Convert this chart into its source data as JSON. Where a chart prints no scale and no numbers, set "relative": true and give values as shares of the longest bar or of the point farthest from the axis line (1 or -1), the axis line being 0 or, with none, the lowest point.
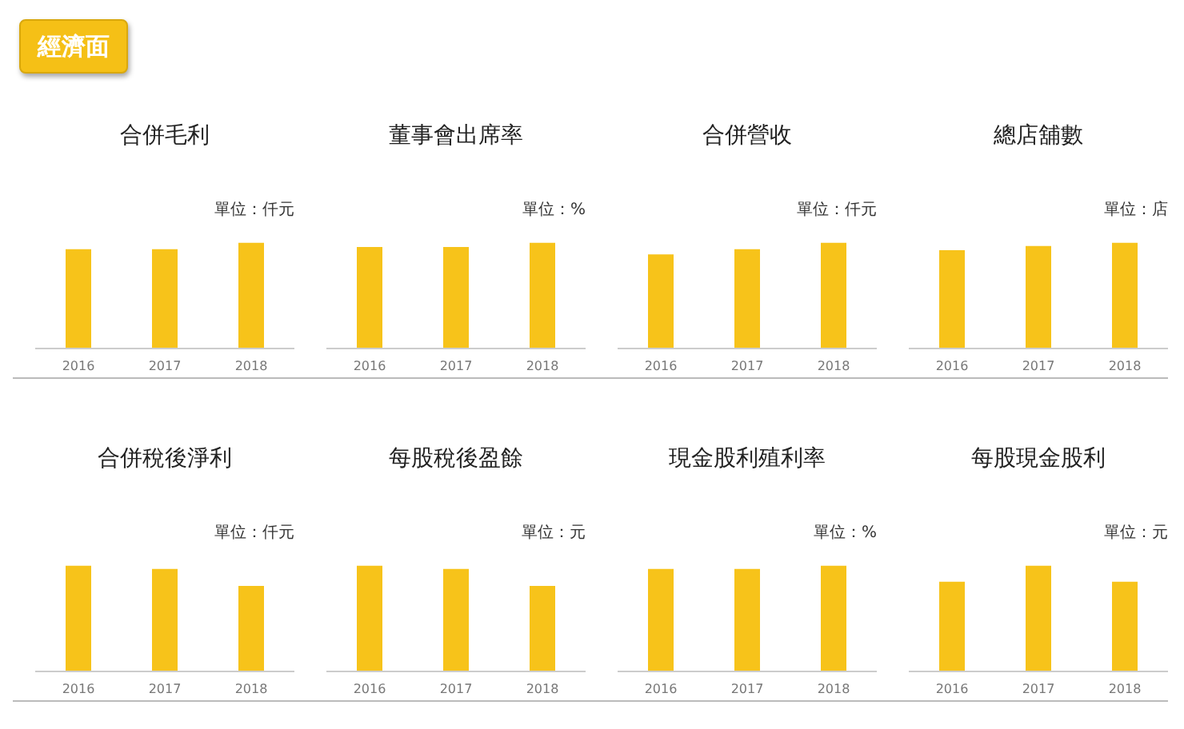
{
  "chart_data": [
    {
      "type": "other",
      "title": "經濟面"
    },
    {
      "type": "bar",
      "title": "合併毛利",
      "annotations": [
        "單位：仟元"
      ],
      "categories": [
        "2016",
        "2017",
        "2018"
      ],
      "values": [
        0.94,
        0.94,
        1
      ],
      "color": "#f7c31a",
      "relative": true
    },
    {
      "type": "bar",
      "title": "董事會出席率",
      "annotations": [
        "單位：%"
      ],
      "categories": [
        "2016",
        "2017",
        "2018"
      ],
      "values": [
        0.96,
        0.96,
        1
      ],
      "color": "#f7c31a",
      "relative": true
    },
    {
      "type": "bar",
      "title": "合併營收",
      "annotations": [
        "單位：仟元"
      ],
      "categories": [
        "2016",
        "2017",
        "2018"
      ],
      "values": [
        0.89,
        0.94,
        1
      ],
      "color": "#f7c31a",
      "relative": true
    },
    {
      "type": "bar",
      "title": "總店舖數",
      "annotations": [
        "單位：店"
      ],
      "categories": [
        "2016",
        "2017",
        "2018"
      ],
      "values": [
        0.93,
        0.97,
        1
      ],
      "color": "#f7c31a",
      "relative": true
    },
    {
      "type": "bar",
      "title": "合併稅後淨利",
      "annotations": [
        "單位：仟元"
      ],
      "categories": [
        "2016",
        "2017",
        "2018"
      ],
      "values": [
        1,
        0.97,
        0.81
      ],
      "color": "#f7c31a",
      "relative": true
    },
    {
      "type": "bar",
      "title": "每股稅後盈餘",
      "annotations": [
        "單位：元"
      ],
      "categories": [
        "2016",
        "2017",
        "2018"
      ],
      "values": [
        1,
        0.97,
        0.81
      ],
      "color": "#f7c31a",
      "relative": true
    },
    {
      "type": "bar",
      "title": "現金股利殖利率",
      "annotations": [
        "單位：%"
      ],
      "categories": [
        "2016",
        "2017",
        "2018"
      ],
      "values": [
        0.97,
        0.97,
        1
      ],
      "color": "#f7c31a",
      "relative": true
    },
    {
      "type": "bar",
      "title": "每股現金股利",
      "annotations": [
        "單位：元"
      ],
      "categories": [
        "2016",
        "2017",
        "2018"
      ],
      "values": [
        0.85,
        1,
        0.85
      ],
      "color": "#f7c31a",
      "relative": true
    }
  ]
}
